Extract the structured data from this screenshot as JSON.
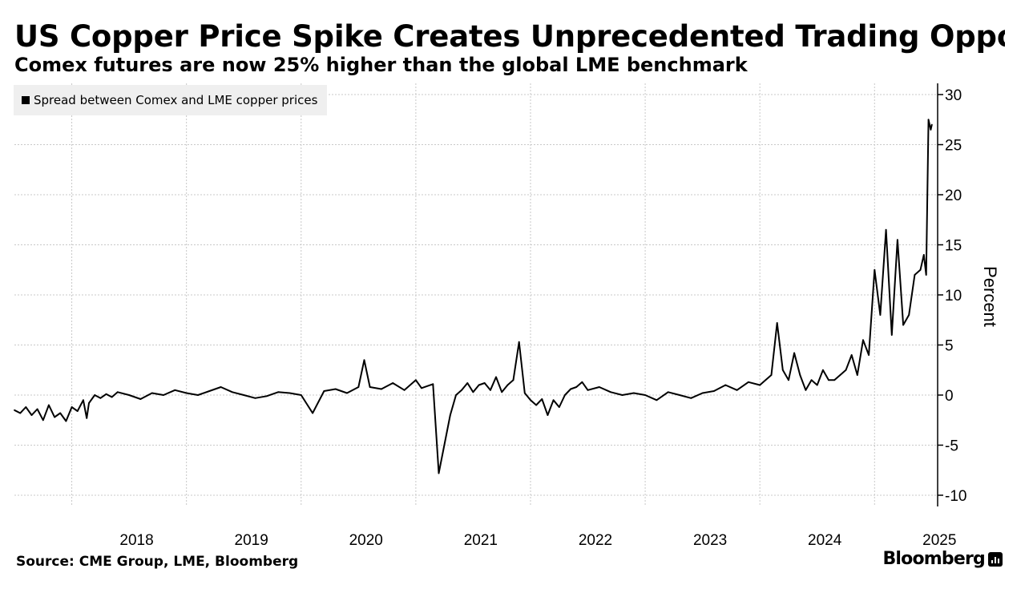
{
  "title": "US Copper Price Spike Creates Unprecedented Trading Opportu",
  "subtitle": "Comex futures are now 25% higher than the global LME benchmark",
  "source": "Source: CME Group, LME, Bloomberg",
  "brand": "Bloomberg",
  "chart_data": {
    "type": "line",
    "title": "US Copper Price Spike Creates Unprecedented Trading Opportu",
    "ylabel": "Percent",
    "ylim": [
      -10,
      30
    ],
    "yticks": [
      -10,
      -5,
      0,
      5,
      10,
      15,
      20,
      25,
      30
    ],
    "ytick_labels": [
      "-10",
      "-5",
      "0",
      "5",
      "10",
      "15",
      "20",
      "25",
      "30"
    ],
    "xlim": [
      2017.5,
      2025.55
    ],
    "xticks": [
      2018,
      2019,
      2020,
      2021,
      2022,
      2023,
      2024,
      2025
    ],
    "xtick_labels": [
      "2018",
      "2019",
      "2020",
      "2021",
      "2022",
      "2023",
      "2024",
      "2025"
    ],
    "grid": true,
    "legend": "top-left",
    "series": [
      {
        "name": "Spread between Comex and LME copper prices",
        "color": "#000000",
        "x": [
          2017.5,
          2017.55,
          2017.6,
          2017.65,
          2017.7,
          2017.75,
          2017.8,
          2017.85,
          2017.9,
          2017.95,
          2018.0,
          2018.05,
          2018.1,
          2018.13,
          2018.15,
          2018.2,
          2018.25,
          2018.3,
          2018.35,
          2018.4,
          2018.5,
          2018.6,
          2018.7,
          2018.8,
          2018.9,
          2019.0,
          2019.1,
          2019.2,
          2019.3,
          2019.4,
          2019.5,
          2019.6,
          2019.7,
          2019.8,
          2019.9,
          2020.0,
          2020.1,
          2020.2,
          2020.3,
          2020.4,
          2020.5,
          2020.55,
          2020.6,
          2020.7,
          2020.8,
          2020.9,
          2021.0,
          2021.05,
          2021.15,
          2021.2,
          2021.3,
          2021.35,
          2021.4,
          2021.45,
          2021.5,
          2021.55,
          2021.6,
          2021.65,
          2021.7,
          2021.75,
          2021.8,
          2021.85,
          2021.9,
          2021.95,
          2022.0,
          2022.05,
          2022.1,
          2022.15,
          2022.2,
          2022.25,
          2022.3,
          2022.35,
          2022.4,
          2022.45,
          2022.5,
          2022.6,
          2022.7,
          2022.8,
          2022.9,
          2023.0,
          2023.1,
          2023.2,
          2023.3,
          2023.4,
          2023.5,
          2023.6,
          2023.7,
          2023.8,
          2023.9,
          2024.0,
          2024.05,
          2024.1,
          2024.15,
          2024.2,
          2024.25,
          2024.3,
          2024.35,
          2024.4,
          2024.45,
          2024.5,
          2024.55,
          2024.6,
          2024.65,
          2024.7,
          2024.75,
          2024.8,
          2024.85,
          2024.9,
          2024.95,
          2025.0,
          2025.05,
          2025.1,
          2025.15,
          2025.2,
          2025.25,
          2025.3,
          2025.35,
          2025.4,
          2025.43,
          2025.45,
          2025.47,
          2025.49,
          2025.5
        ],
        "y": [
          -1.5,
          -1.8,
          -1.2,
          -2.0,
          -1.4,
          -2.5,
          -1.0,
          -2.2,
          -1.8,
          -2.6,
          -1.2,
          -1.6,
          -0.5,
          -2.3,
          -0.8,
          0.0,
          -0.3,
          0.1,
          -0.2,
          0.3,
          0.0,
          -0.4,
          0.2,
          0.0,
          0.5,
          0.2,
          0.0,
          0.4,
          0.8,
          0.3,
          0.0,
          -0.3,
          -0.1,
          0.3,
          0.2,
          0.0,
          -1.8,
          0.4,
          0.6,
          0.2,
          0.8,
          3.5,
          0.8,
          0.6,
          1.2,
          0.5,
          1.5,
          0.7,
          1.1,
          -7.8,
          -2.0,
          0.0,
          0.5,
          1.2,
          0.3,
          1.0,
          1.2,
          0.5,
          1.8,
          0.3,
          1.0,
          1.5,
          5.3,
          0.2,
          -0.5,
          -1.0,
          -0.4,
          -2.0,
          -0.5,
          -1.2,
          0.0,
          0.6,
          0.8,
          1.3,
          0.5,
          0.8,
          0.3,
          0.0,
          0.2,
          0.0,
          -0.5,
          0.3,
          0.0,
          -0.3,
          0.2,
          0.4,
          1.0,
          0.5,
          1.3,
          1.0,
          1.5,
          2.0,
          7.2,
          2.5,
          1.5,
          4.2,
          2.0,
          0.5,
          1.5,
          1.0,
          2.5,
          1.5,
          1.5,
          2.0,
          2.5,
          4.0,
          2.0,
          5.5,
          4.0,
          12.5,
          8.0,
          16.5,
          6.0,
          15.5,
          7.0,
          8.0,
          12.0,
          12.5,
          14.0,
          12.0,
          27.5,
          26.5,
          27.0
        ]
      }
    ]
  }
}
